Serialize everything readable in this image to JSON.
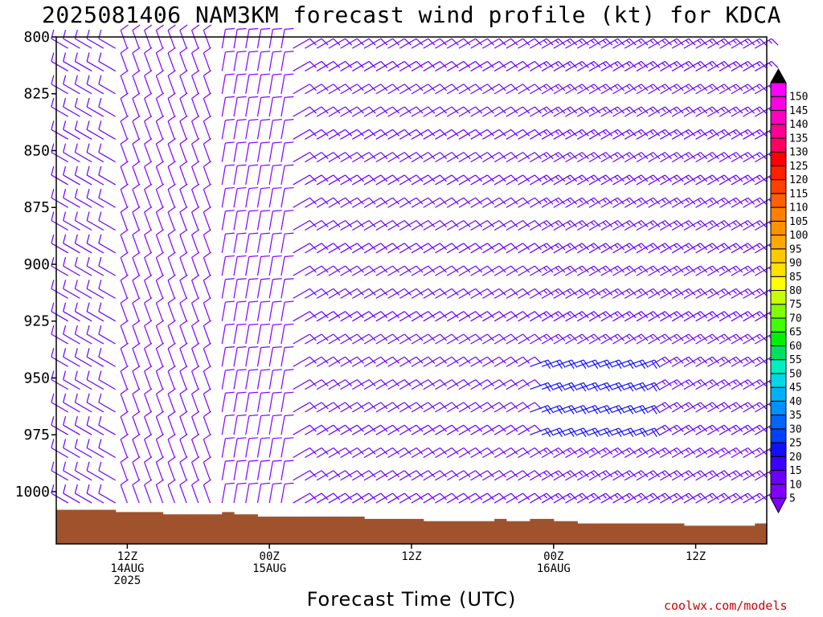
{
  "title": "2025081406 NAM3KM forecast wind profile (kt) for KDCA",
  "credit": "coolwx.com/models",
  "chart_data": {
    "type": "wind-barb-time-height",
    "title": "2025081406 NAM3KM forecast wind profile (kt) for KDCA",
    "xlabel": "Forecast Time (UTC)",
    "ylabel": "",
    "y_range_hpa": [
      800,
      1023
    ],
    "y_ticks": [
      {
        "value": 800,
        "label": "800"
      },
      {
        "value": 825,
        "label": "825"
      },
      {
        "value": 850,
        "label": "850"
      },
      {
        "value": 875,
        "label": "875"
      },
      {
        "value": 900,
        "label": "900"
      },
      {
        "value": 925,
        "label": "925"
      },
      {
        "value": 950,
        "label": "950"
      },
      {
        "value": 975,
        "label": "975"
      },
      {
        "value": 1000,
        "label": "1000"
      }
    ],
    "x_range_hours": [
      0,
      60
    ],
    "x_ticks": [
      {
        "hour": 6,
        "lines": [
          "12Z",
          "14AUG",
          "2025"
        ]
      },
      {
        "hour": 18,
        "lines": [
          "00Z",
          "15AUG"
        ]
      },
      {
        "hour": 30,
        "lines": [
          "12Z"
        ]
      },
      {
        "hour": 42,
        "lines": [
          "00Z",
          "16AUG"
        ]
      },
      {
        "hour": 54,
        "lines": [
          "12Z"
        ]
      }
    ],
    "levels_hpa": [
      805,
      815,
      825,
      835,
      845,
      855,
      865,
      875,
      885,
      895,
      905,
      915,
      925,
      935,
      945,
      955,
      965,
      975,
      985,
      995,
      1005
    ],
    "forecast_hours": [
      1,
      2,
      3,
      4,
      5,
      6,
      7,
      8,
      9,
      10,
      11,
      12,
      13,
      14,
      15,
      16,
      17,
      18,
      19,
      20,
      21,
      22,
      23,
      24,
      25,
      26,
      27,
      28,
      29,
      30,
      31,
      32,
      33,
      34,
      35,
      36,
      37,
      38,
      39,
      40,
      41,
      42,
      43,
      44,
      45,
      46,
      47,
      48,
      49,
      50,
      51,
      52,
      53,
      54,
      55,
      56,
      57,
      58,
      59
    ],
    "terrain": {
      "color": "#a0522d",
      "surface_pressure_hpa": [
        1008,
        1008,
        1008,
        1008,
        1008,
        1009,
        1009,
        1009,
        1009,
        1010,
        1010,
        1010,
        1010,
        1010,
        1009,
        1010,
        1010,
        1011,
        1011,
        1011,
        1011,
        1011,
        1011,
        1011,
        1011,
        1011,
        1012,
        1012,
        1012,
        1012,
        1012,
        1013,
        1013,
        1013,
        1013,
        1013,
        1013,
        1012,
        1013,
        1013,
        1012,
        1012,
        1013,
        1013,
        1014,
        1014,
        1014,
        1014,
        1014,
        1014,
        1014,
        1014,
        1014,
        1015,
        1015,
        1015,
        1015,
        1015,
        1015,
        1014
      ]
    },
    "wind_profile": [
      {
        "hour_range": [
          0,
          6
        ],
        "levels": "all",
        "direction_deg": 300,
        "speed_kt": 10
      },
      {
        "hour_range": [
          6,
          14
        ],
        "levels": "all",
        "direction_deg": 340,
        "speed_kt": 8
      },
      {
        "hour_range": [
          14,
          20
        ],
        "levels": "all",
        "direction_deg": 10,
        "speed_kt": 8
      },
      {
        "hour_range": [
          20,
          40
        ],
        "levels": "all",
        "direction_deg": 60,
        "speed_kt": 12
      },
      {
        "hour_range": [
          40,
          50
        ],
        "levels_hpa": [
          940,
          975
        ],
        "direction_deg": 70,
        "speed_kt": 22
      },
      {
        "hour_range": [
          40,
          60
        ],
        "levels": "other",
        "direction_deg": 60,
        "speed_kt": 13
      }
    ],
    "colorbar": {
      "units": "kt",
      "labels": [
        "5",
        "10",
        "15",
        "20",
        "25",
        "30",
        "35",
        "40",
        "45",
        "50",
        "55",
        "60",
        "65",
        "70",
        "75",
        "80",
        "85",
        "90",
        "95",
        "100",
        "105",
        "110",
        "115",
        "120",
        "125",
        "130",
        "135",
        "140",
        "145",
        "150"
      ],
      "colors": [
        "#8000ff",
        "#6a00ff",
        "#3a00ff",
        "#1010ff",
        "#0040ff",
        "#0066ff",
        "#0090ff",
        "#00b0ff",
        "#00d8e8",
        "#00f0c0",
        "#00e060",
        "#00f000",
        "#40ff00",
        "#80ff00",
        "#c8ff00",
        "#ffff00",
        "#ffe000",
        "#ffc800",
        "#ffa800",
        "#ff9000",
        "#ff8000",
        "#ff6000",
        "#ff4000",
        "#ff2000",
        "#ff0000",
        "#ff0060",
        "#ff0090",
        "#ff00c0",
        "#ff00e0",
        "#ff00ff"
      ],
      "top_arrow_color": "#000000",
      "bottom_arrow_color": "#8000ff"
    }
  }
}
